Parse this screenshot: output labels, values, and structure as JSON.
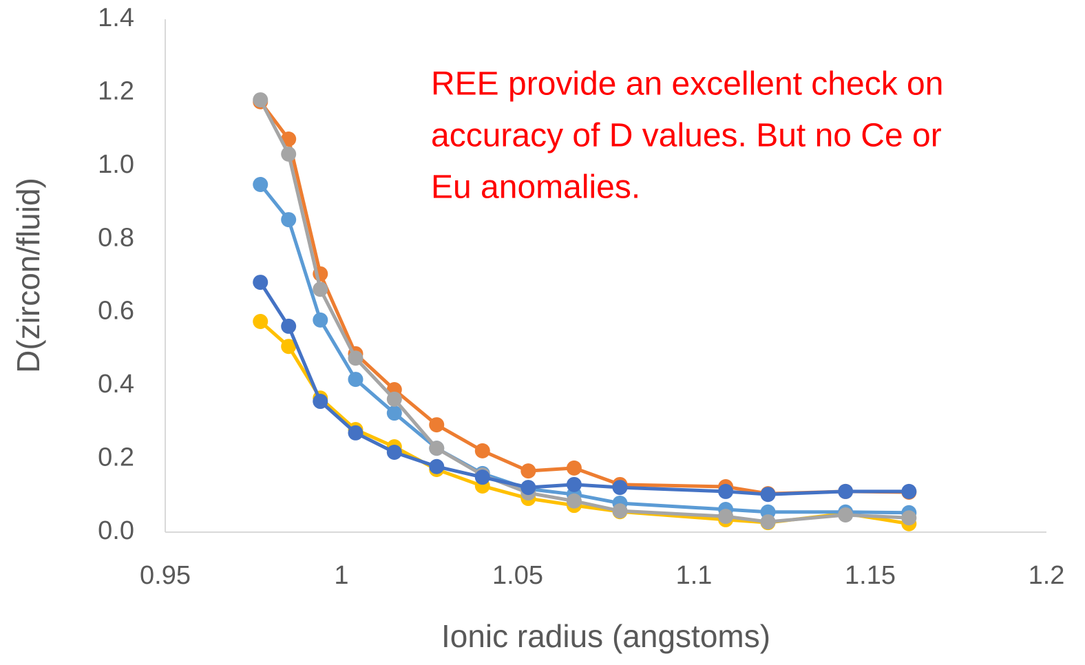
{
  "chart_data": {
    "type": "line",
    "annotation": [
      "REE provide an excellent check on",
      "accuracy of D values. But no Ce or",
      "Eu anomalies."
    ],
    "x_label": "Ionic radius (angstoms)",
    "y_label": "D(zircon/fluid)",
    "x": [
      0.977,
      0.985,
      0.994,
      1.004,
      1.015,
      1.027,
      1.04,
      1.053,
      1.066,
      1.079,
      1.109,
      1.121,
      1.143,
      1.161
    ],
    "series": [
      {
        "color": "#FFC000",
        "values": [
          0.575,
          0.507,
          0.366,
          0.28,
          0.233,
          0.171,
          0.126,
          0.092,
          0.073,
          0.056,
          0.034,
          0.026,
          0.051,
          0.023
        ]
      },
      {
        "color": "#5B9BD5",
        "values": [
          0.949,
          0.853,
          0.579,
          0.417,
          0.325,
          0.229,
          0.16,
          0.118,
          0.103,
          0.079,
          0.062,
          0.055,
          0.055,
          0.053
        ]
      },
      {
        "color": "#ED7D31",
        "values": [
          1.175,
          1.073,
          0.705,
          0.487,
          0.389,
          0.293,
          0.222,
          0.167,
          0.175,
          0.13,
          0.124,
          0.105,
          0.111,
          0.109
        ]
      },
      {
        "color": "#A5A5A5",
        "values": [
          1.18,
          1.032,
          0.663,
          0.475,
          0.363,
          0.229,
          0.156,
          0.107,
          0.085,
          0.058,
          0.043,
          0.028,
          0.047,
          0.039
        ]
      },
      {
        "color": "#4472C4",
        "values": [
          0.682,
          0.562,
          0.357,
          0.271,
          0.218,
          0.179,
          0.15,
          0.122,
          0.13,
          0.122,
          0.111,
          0.103,
          0.111,
          0.111
        ]
      }
    ],
    "xlim": [
      0.95,
      1.2
    ],
    "xticks": [
      0.95,
      1,
      1.05,
      1.1,
      1.15,
      1.2
    ],
    "ylim": [
      0,
      1.4
    ],
    "yticks": [
      {
        "value": 0,
        "label": "0.0"
      },
      0.2,
      0.4,
      0.6,
      0.8,
      {
        "value": 1,
        "label": "1.0"
      },
      1.2,
      1.4
    ]
  }
}
